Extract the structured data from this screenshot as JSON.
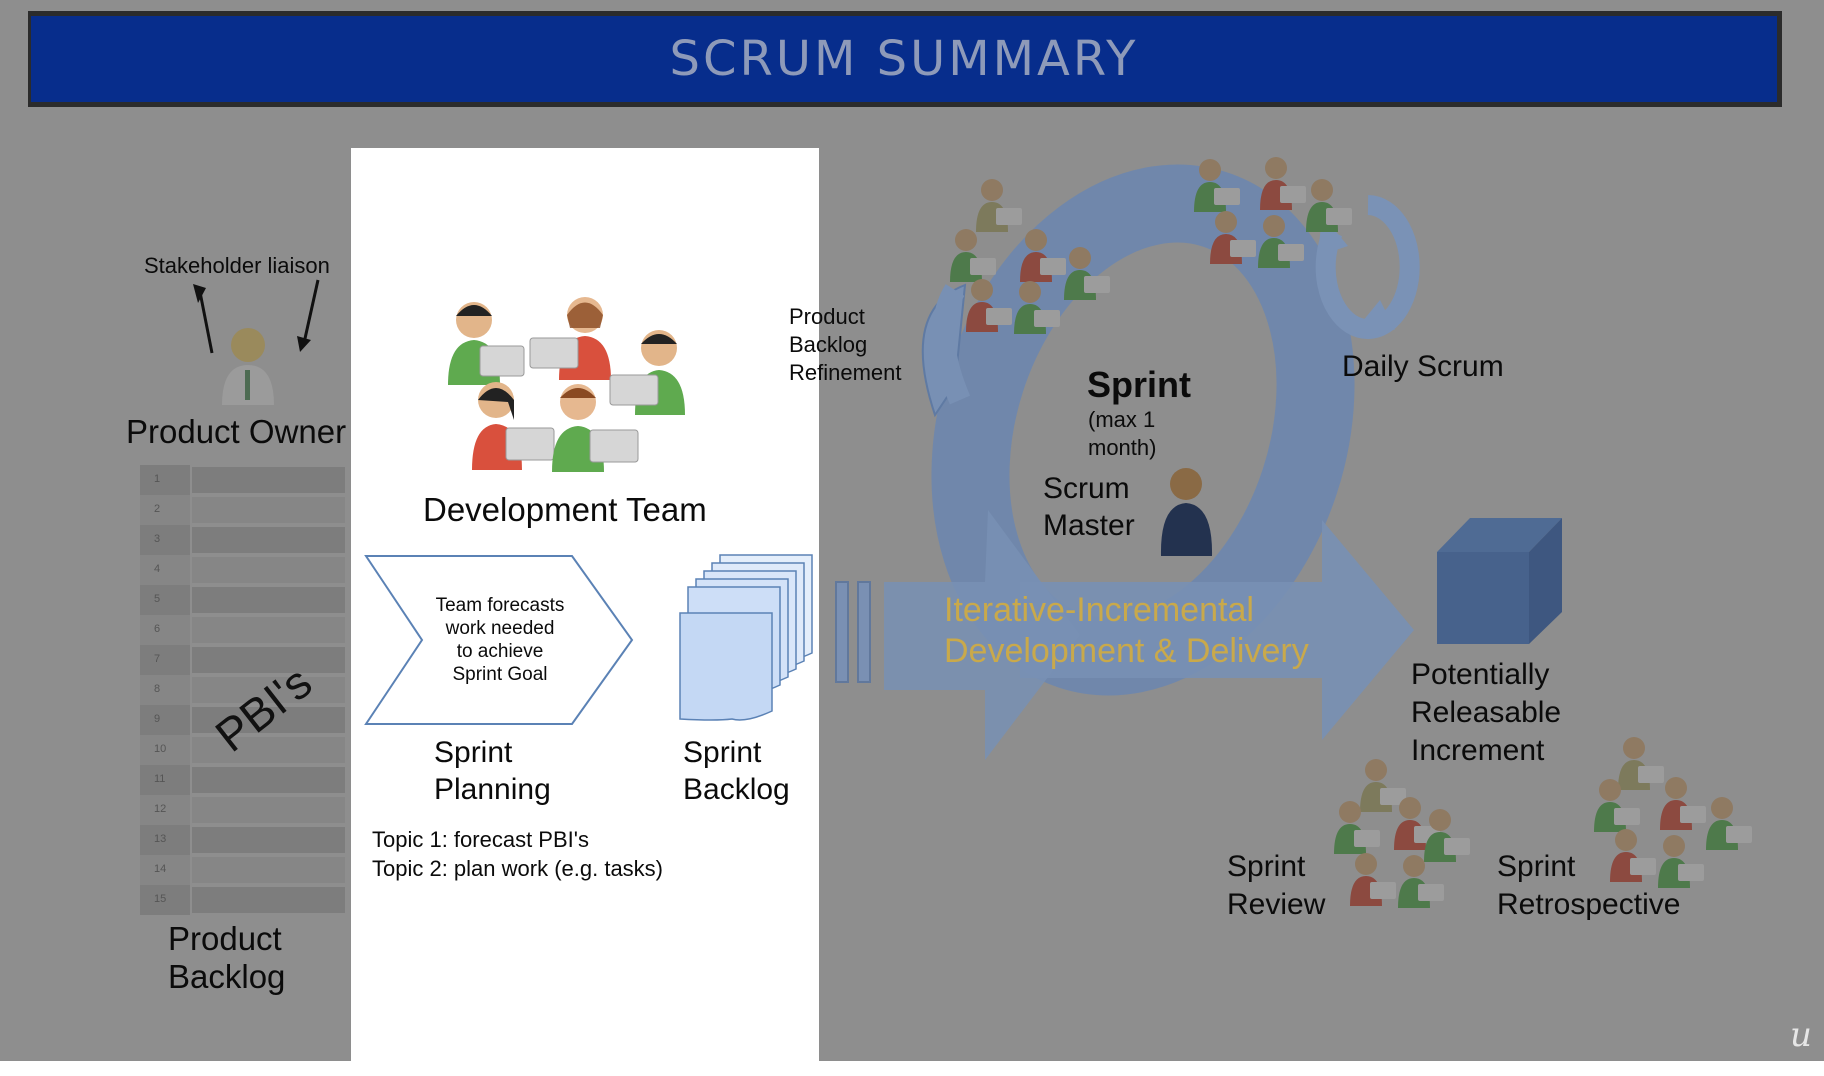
{
  "title": "SCRUM SUMMARY",
  "product_owner": {
    "stakeholder_label": "Stakeholder liaison",
    "role_label": "Product Owner"
  },
  "product_backlog": {
    "rotated_label": "PBI's",
    "label_line1": "Product",
    "label_line2": "Backlog",
    "rows": [
      "1",
      "2",
      "3",
      "4",
      "5",
      "6",
      "7",
      "8",
      "9",
      "10",
      "11",
      "12",
      "13",
      "14",
      "15"
    ]
  },
  "development_team": {
    "label": "Development Team"
  },
  "sprint_planning": {
    "chevron_lines": [
      "Team forecasts",
      "work needed",
      "to achieve",
      "Sprint Goal"
    ],
    "label_line1": "Sprint",
    "label_line2": "Planning",
    "topic1": "Topic 1: forecast PBI's",
    "topic2": "Topic 2: plan work (e.g. tasks)"
  },
  "sprint_backlog": {
    "label_line1": "Sprint",
    "label_line2": "Backlog"
  },
  "refinement": {
    "lines": [
      "Product",
      "Backlog",
      "Refinement"
    ]
  },
  "sprint": {
    "title": "Sprint",
    "duration_line1": "(max 1",
    "duration_line2": "month)"
  },
  "scrum_master": {
    "line1": "Scrum",
    "line2": "Master"
  },
  "daily_scrum": {
    "label": "Daily Scrum"
  },
  "iterative": {
    "line1": "Iterative-Incremental",
    "line2": "Development & Delivery"
  },
  "increment": {
    "lines": [
      "Potentially",
      "Releasable",
      "Increment"
    ]
  },
  "sprint_review": {
    "line1": "Sprint",
    "line2": "Review"
  },
  "sprint_retrospective": {
    "line1": "Sprint",
    "line2": "Retrospective"
  },
  "watermark": "u",
  "colors": {
    "title_bar": "#072d8c",
    "title_text": "#8e9ab9",
    "dimmed_background": "#8e8e8e",
    "highlight_panel": "#ffffff",
    "cycle_blue": "#6f87ad",
    "iterative_text": "#c9a94b",
    "backlog_blue": "#cfe0f7"
  }
}
